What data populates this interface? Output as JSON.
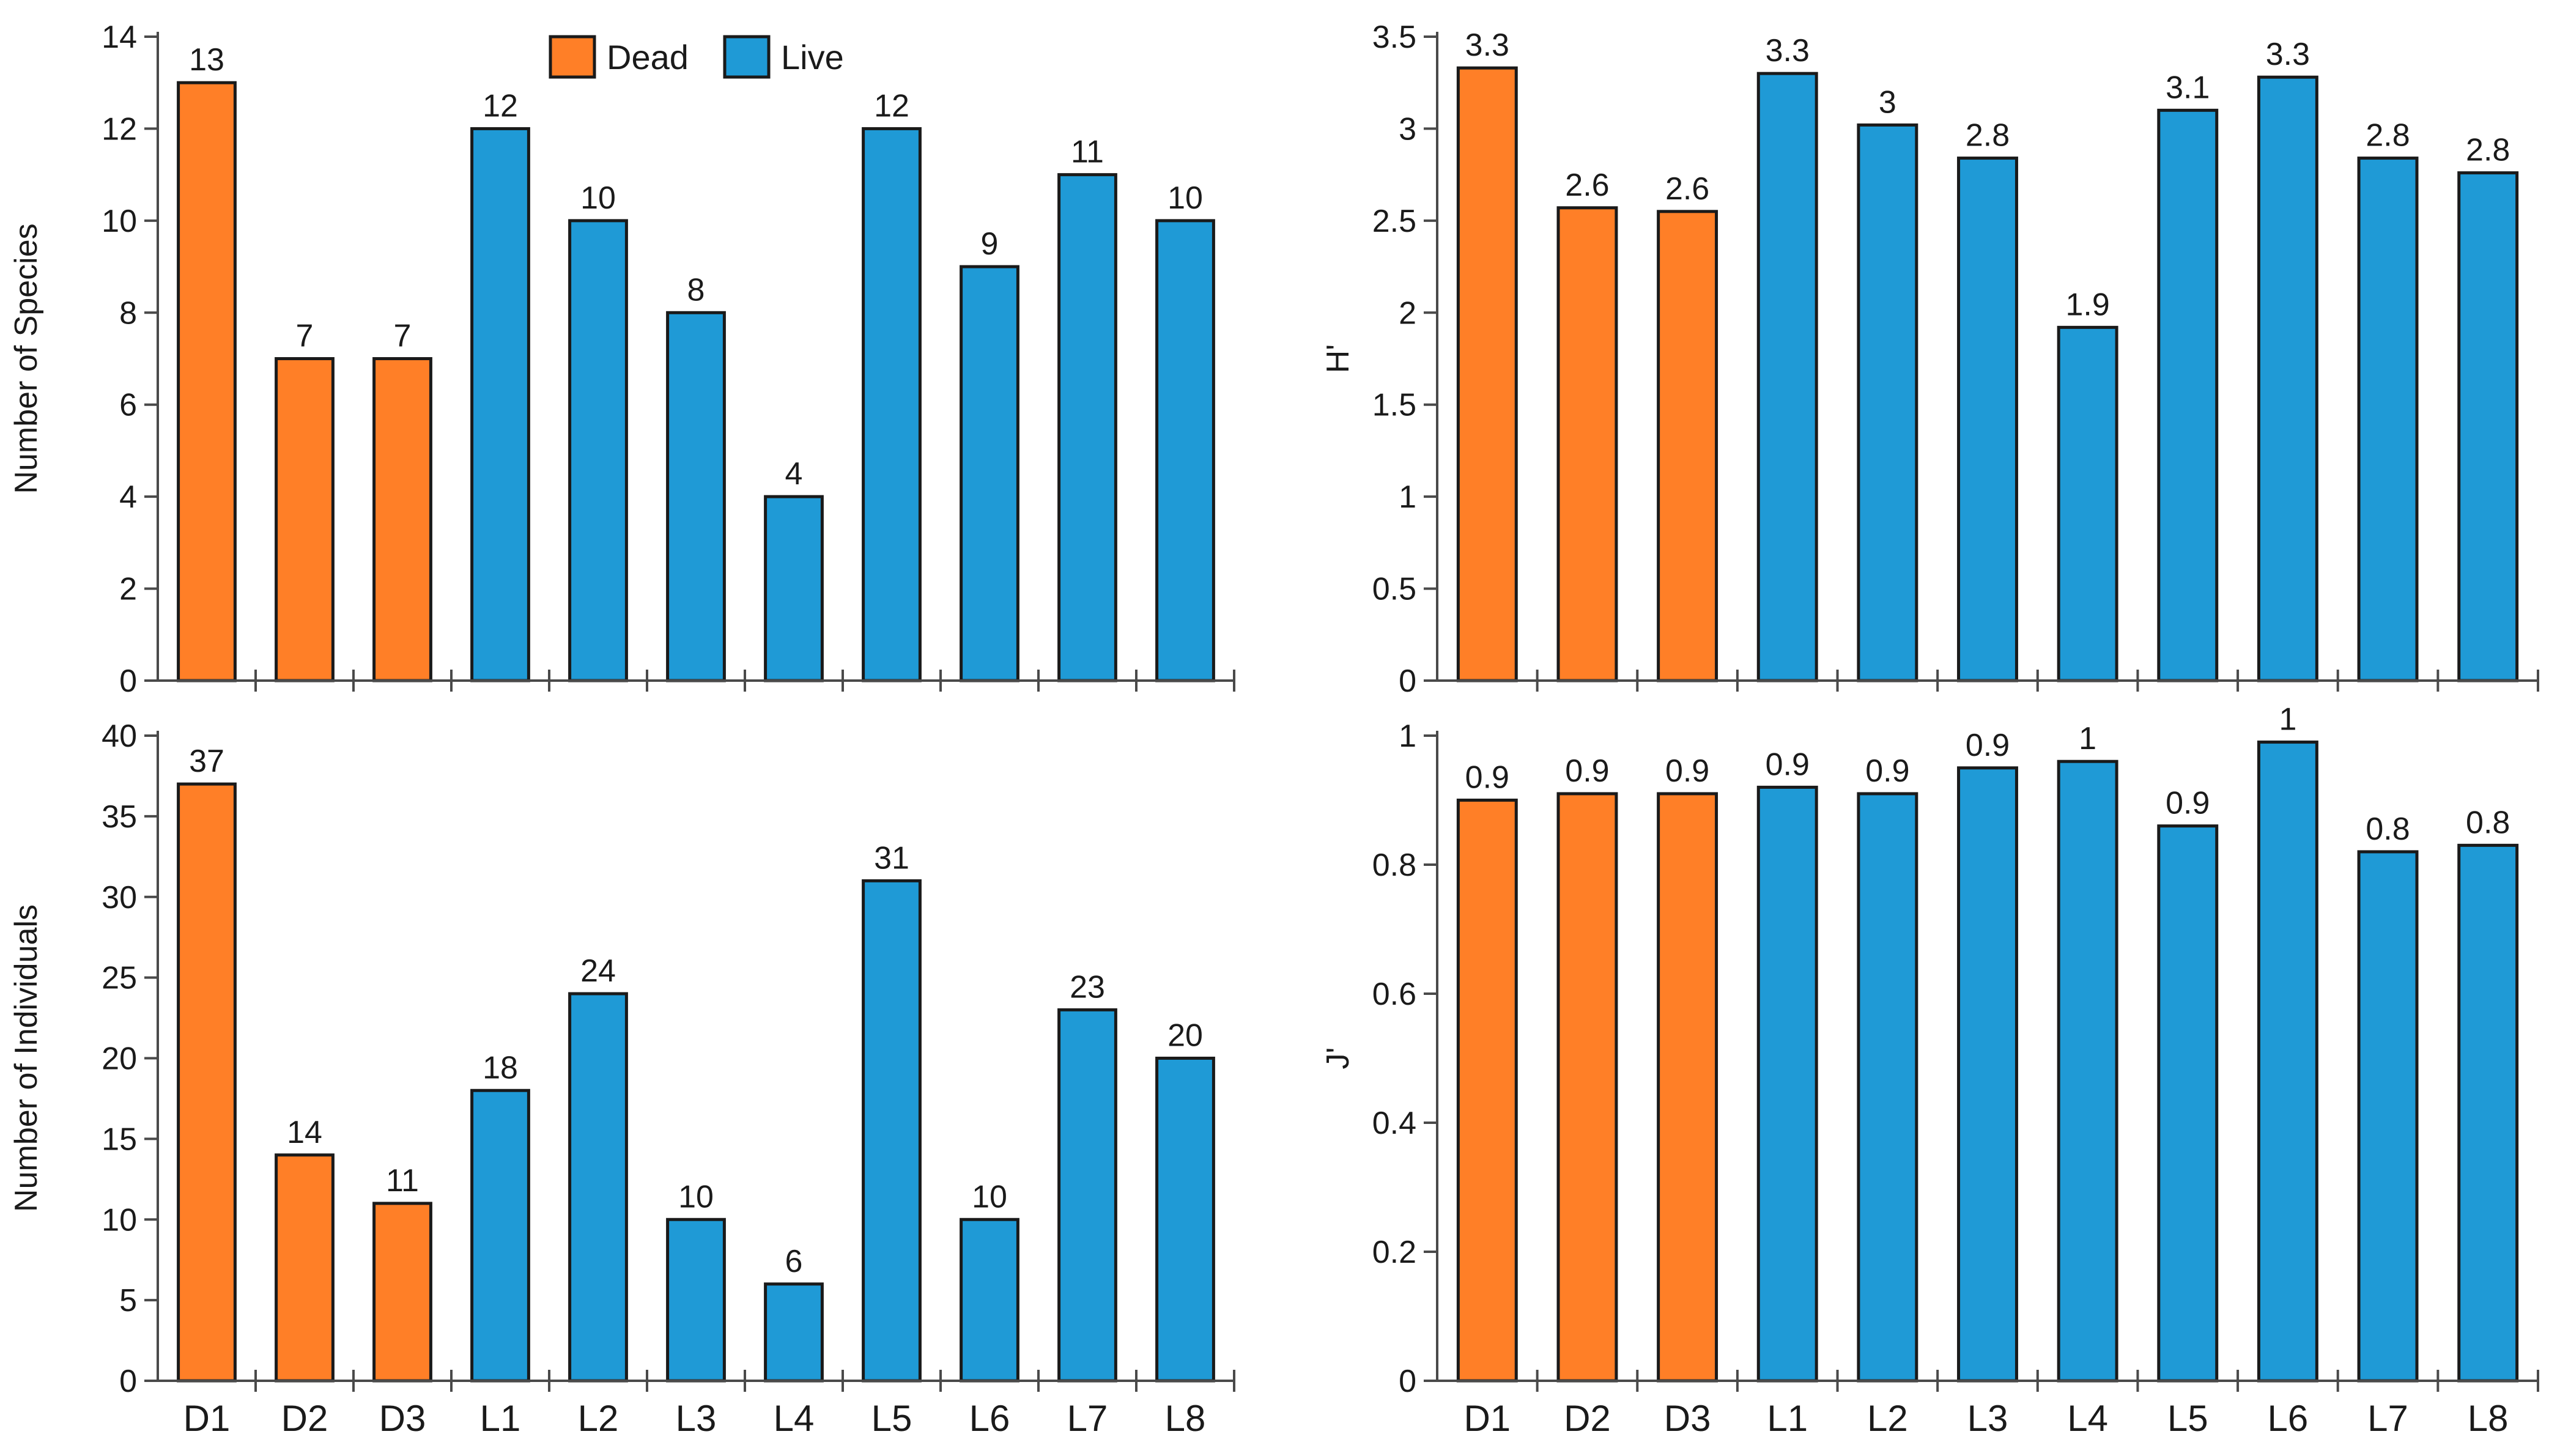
{
  "legend": {
    "items": [
      {
        "label": "Dead",
        "color": "#ff7f27"
      },
      {
        "label": "Live",
        "color": "#1f9ad6"
      }
    ]
  },
  "colors": {
    "dead": "#ff7f27",
    "live": "#1f9ad6",
    "axis": "#4a4a4a"
  },
  "chart_data": [
    {
      "id": "species",
      "type": "bar",
      "title": "",
      "xlabel": "",
      "ylabel": "Number of Species",
      "categories": [
        "D1",
        "D2",
        "D3",
        "L1",
        "L2",
        "L3",
        "L4",
        "L5",
        "L6",
        "L7",
        "L8"
      ],
      "groups": [
        "dead",
        "dead",
        "dead",
        "live",
        "live",
        "live",
        "live",
        "live",
        "live",
        "live",
        "live"
      ],
      "values": [
        13,
        7,
        7,
        12,
        10,
        8,
        4,
        12,
        9,
        11,
        10
      ],
      "labels": [
        "13",
        "7",
        "7",
        "12",
        "10",
        "8",
        "4",
        "12",
        "9",
        "11",
        "10"
      ],
      "ylim": [
        0,
        14
      ],
      "yticks": [
        "0",
        "2",
        "4",
        "6",
        "8",
        "10",
        "12",
        "14"
      ],
      "show_categories": false,
      "legend": true
    },
    {
      "id": "shannon",
      "type": "bar",
      "title": "",
      "xlabel": "",
      "ylabel": "H'",
      "categories": [
        "D1",
        "D2",
        "D3",
        "L1",
        "L2",
        "L3",
        "L4",
        "L5",
        "L6",
        "L7",
        "L8"
      ],
      "groups": [
        "dead",
        "dead",
        "dead",
        "live",
        "live",
        "live",
        "live",
        "live",
        "live",
        "live",
        "live"
      ],
      "values": [
        3.33,
        2.57,
        2.55,
        3.3,
        3.02,
        2.84,
        1.92,
        3.1,
        3.28,
        2.84,
        2.76
      ],
      "labels": [
        "3.3",
        "2.6",
        "2.6",
        "3.3",
        "3",
        "2.8",
        "1.9",
        "3.1",
        "3.3",
        "2.8",
        "2.8"
      ],
      "ylim": [
        0,
        3.5
      ],
      "yticks": [
        "0",
        "0.5",
        "1",
        "1.5",
        "2",
        "2.5",
        "3",
        "3.5"
      ],
      "show_categories": false,
      "legend": false
    },
    {
      "id": "individuals",
      "type": "bar",
      "title": "",
      "xlabel": "",
      "ylabel": "Number of Individuals",
      "categories": [
        "D1",
        "D2",
        "D3",
        "L1",
        "L2",
        "L3",
        "L4",
        "L5",
        "L6",
        "L7",
        "L8"
      ],
      "groups": [
        "dead",
        "dead",
        "dead",
        "live",
        "live",
        "live",
        "live",
        "live",
        "live",
        "live",
        "live"
      ],
      "values": [
        37,
        14,
        11,
        18,
        24,
        10,
        6,
        31,
        10,
        23,
        20
      ],
      "labels": [
        "37",
        "14",
        "11",
        "18",
        "24",
        "10",
        "6",
        "31",
        "10",
        "23",
        "20"
      ],
      "ylim": [
        0,
        40
      ],
      "yticks": [
        "0",
        "5",
        "10",
        "15",
        "20",
        "25",
        "30",
        "35",
        "40"
      ],
      "show_categories": true,
      "legend": false
    },
    {
      "id": "evenness",
      "type": "bar",
      "title": "",
      "xlabel": "",
      "ylabel": "J'",
      "categories": [
        "D1",
        "D2",
        "D3",
        "L1",
        "L2",
        "L3",
        "L4",
        "L5",
        "L6",
        "L7",
        "L8"
      ],
      "groups": [
        "dead",
        "dead",
        "dead",
        "live",
        "live",
        "live",
        "live",
        "live",
        "live",
        "live",
        "live"
      ],
      "values": [
        0.9,
        0.91,
        0.91,
        0.92,
        0.91,
        0.95,
        0.96,
        0.86,
        0.99,
        0.82,
        0.83
      ],
      "labels": [
        "0.9",
        "0.9",
        "0.9",
        "0.9",
        "0.9",
        "0.9",
        "1",
        "0.9",
        "1",
        "0.8",
        "0.8"
      ],
      "ylim": [
        0,
        1
      ],
      "yticks": [
        "0",
        "0.2",
        "0.4",
        "0.6",
        "0.8",
        "1"
      ],
      "show_categories": true,
      "legend": false
    }
  ]
}
